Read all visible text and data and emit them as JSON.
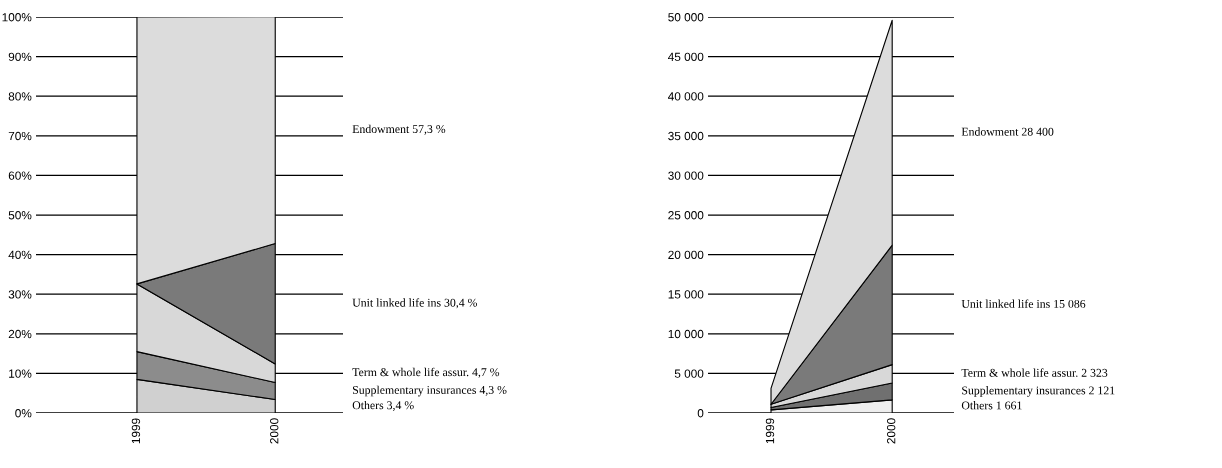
{
  "chart_data": [
    {
      "type": "area",
      "stacked": true,
      "categories": [
        "1999",
        "2000"
      ],
      "series": [
        {
          "color": "#d0d0d0",
          "values": [
            8.5,
            3.4
          ]
        },
        {
          "color": "#8c8c8c",
          "values": [
            7.0,
            4.3
          ]
        },
        {
          "color": "#d8d8d8",
          "values": [
            17.1,
            4.7
          ]
        },
        {
          "color": "#7a7a7a",
          "values": [
            0,
            30.4
          ]
        },
        {
          "color": "#dcdcdc",
          "values": [
            67.4,
            57.3
          ]
        }
      ],
      "ylim": [
        0,
        100
      ],
      "yticks": [
        {
          "value": 0,
          "label": "0%"
        },
        {
          "value": 10,
          "label": "10%"
        },
        {
          "value": 20,
          "label": "20%"
        },
        {
          "value": 30,
          "label": "30%"
        },
        {
          "value": 40,
          "label": "40%"
        },
        {
          "value": 50,
          "label": "50%"
        },
        {
          "value": 60,
          "label": "60%"
        },
        {
          "value": 70,
          "label": "70%"
        },
        {
          "value": 80,
          "label": "80%"
        },
        {
          "value": 90,
          "label": "90%"
        },
        {
          "value": 100,
          "label": "100%"
        }
      ],
      "grid": "y",
      "legend": false,
      "annotations": [
        "Others 3,4 %",
        "Supplementary insurances 4,3 %",
        "Term & whole life assur. 4,7 %",
        "Unit linked life ins 30,4 %",
        "Endowment 57,3 %"
      ]
    },
    {
      "type": "area",
      "stacked": true,
      "categories": [
        "1999",
        "2000"
      ],
      "series": [
        {
          "color": "#eeeeee",
          "values": [
            400,
            1661
          ]
        },
        {
          "color": "#707070",
          "values": [
            300,
            2121
          ]
        },
        {
          "color": "#d8d8d8",
          "values": [
            400,
            2323
          ]
        },
        {
          "color": "#7a7a7a",
          "values": [
            0,
            15086
          ]
        },
        {
          "color": "#dcdcdc",
          "values": [
            2000,
            28400
          ]
        }
      ],
      "ylim": [
        0,
        50000
      ],
      "yticks": [
        0,
        {
          "value": 5000,
          "label": "5 000"
        },
        {
          "value": 10000,
          "label": "10 000"
        },
        {
          "value": 15000,
          "label": "15 000"
        },
        {
          "value": 20000,
          "label": "20 000"
        },
        {
          "value": 25000,
          "label": "25 000"
        },
        {
          "value": 30000,
          "label": "30 000"
        },
        {
          "value": 35000,
          "label": "35 000"
        },
        {
          "value": 40000,
          "label": "40 000"
        },
        {
          "value": 45000,
          "label": "45 000"
        },
        {
          "value": 50000,
          "label": "50 000"
        }
      ],
      "grid": "y",
      "legend": false,
      "annotations": [
        "Others 1 661",
        "Supplementary insurances 2 121",
        "Term & whole life assur. 2 323",
        "Unit linked life ins 15 086",
        "Endowment 28 400"
      ]
    }
  ]
}
